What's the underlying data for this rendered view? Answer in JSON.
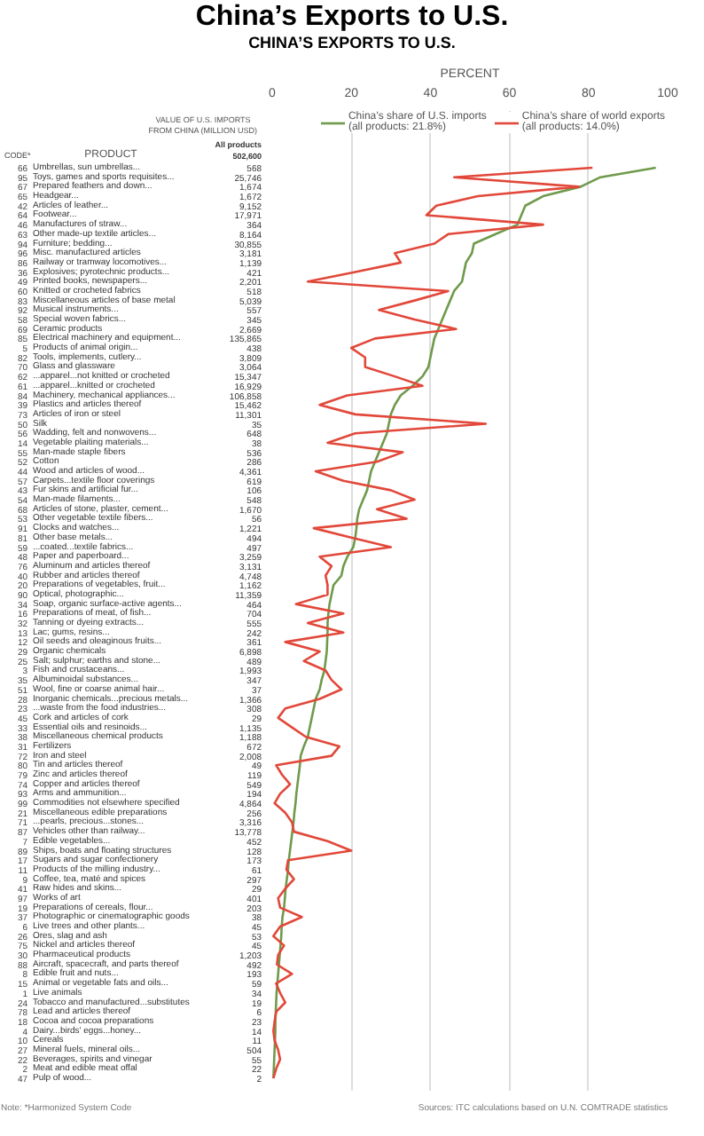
{
  "chart_data": [
    {
      "type": "other",
      "title": "VALUE OF U.S. IMPORTS FROM CHINA (MILLION USD)",
      "value_labels": [
        "568",
        "25,746",
        "1,674",
        "1,672",
        "9,152",
        "17,971",
        "364",
        "8,164",
        "30,855",
        "3,181",
        "1,139",
        "421",
        "2,201",
        "518",
        "5,039",
        "557",
        "345",
        "2,669",
        "135,865",
        "438",
        "3,809",
        "3,064",
        "15,347",
        "16,929",
        "106,858",
        "15,462",
        "11,301",
        "35",
        "648",
        "38",
        "536",
        "286",
        "4,361",
        "619",
        "106",
        "548",
        "1,670",
        "56",
        "1,221",
        "494",
        "497",
        "3,259",
        "3,131",
        "4,748",
        "1,162",
        "11,359",
        "464",
        "704",
        "555",
        "242",
        "361",
        "6,898",
        "489",
        "1,993",
        "347",
        "37",
        "1,366",
        "308",
        "29",
        "1,135",
        "1,188",
        "672",
        "2,008",
        "49",
        "119",
        "549",
        "194",
        "4,864",
        "256",
        "3,316",
        "13,778",
        "452",
        "128",
        "173",
        "61",
        "297",
        "29",
        "401",
        "203",
        "38",
        "45",
        "53",
        "45",
        "1,203",
        "492",
        "193",
        "59",
        "34",
        "19",
        "6",
        "23",
        "14",
        "11",
        "504",
        "55",
        "22",
        "2"
      ],
      "categories": [
        "Umbrellas, sun umbrellas...",
        "Toys, games and sports requisites...",
        "Prepared feathers and down...",
        "Headgear...",
        "Articles of leather...",
        "Footwear...",
        "Manufactures of straw...",
        "Other made-up textile articles...",
        "Furniture; bedding...",
        "Misc. manufactured articles",
        "Railway or tramway locomotives...",
        "Explosives; pyrotechnic products...",
        "Printed books, newspapers...",
        "Knitted or crocheted fabrics",
        "Miscellaneous articles of base metal",
        "Musical instruments...",
        "Special woven fabrics...",
        "Ceramic products",
        "Electrical machinery and equipment...",
        "Products of animal origin...",
        "Tools, implements, cutlery...",
        "Glass and glassware",
        "...apparel...not knitted or crocheted",
        "...apparel...knitted or crocheted",
        "Machinery, mechanical appliances...",
        "Plastics and articles thereof",
        "Articles of iron or steel",
        "Silk",
        "Wadding, felt and nonwovens...",
        "Vegetable plaiting materials...",
        "Man-made staple fibers",
        "Cotton",
        "Wood and articles of wood...",
        "Carpets...textile floor coverings",
        "Fur skins and artificial fur...",
        "Man-made filaments...",
        "Articles of stone, plaster, cement...",
        "Other vegetable textile fibers...",
        "Clocks and watches...",
        "Other base metals...",
        "...coated...textile fabrics...",
        "Paper and paperboard...",
        "Aluminum and articles thereof",
        "Rubber and articles thereof",
        "Preparations of vegetables, fruit...",
        "Optical, photographic...",
        "Soap, organic surface-active agents...",
        "Preparations of meat, of fish...",
        "Tanning or dyeing extracts...",
        "Lac; gums, resins...",
        "Oil seeds and oleaginous fruits...",
        "Organic chemicals",
        "Salt; sulphur; earths and stone...",
        "Fish and crustaceans...",
        "Albuminoidal substances...",
        "Wool, fine or coarse animal hair...",
        "Inorganic chemicals...precious metals...",
        "...waste from the food industries...",
        "Cork and articles of cork",
        "Essential oils and resinoids...",
        "Miscellaneous chemical products",
        "Fertilizers",
        "Iron and steel",
        "Tin and articles thereof",
        "Zinc and articles thereof",
        "Copper and articles thereof",
        "Arms and ammunition...",
        "Commodities not elsewhere specified",
        "Miscellaneous edible preparations",
        "...pearls, precious...stones...",
        "Vehicles other than railway...",
        "Edible vegetables...",
        "Ships, boats and floating structures",
        "Sugars and sugar confectionery",
        "Products of the milling industry...",
        "Coffee, tea, maté and spices",
        "Raw hides and skins...",
        "Works of art",
        "Preparations of cereals, flour...",
        "Photographic or cinematographic goods",
        "Live trees and other plants...",
        "Ores, slag and ash",
        "Nickel and articles thereof",
        "Pharmaceutical products",
        "Aircraft, spacecraft, and parts thereof",
        "Edible fruit and nuts...",
        "Animal or vegetable fats and oils...",
        "Live animals",
        "Tobacco and manufactured...substitutes",
        "Lead and articles thereof",
        "Cocoa and cocoa preparations",
        "Dairy...birds' eggs...honey...",
        "Cereals",
        "Mineral fuels, mineral oils...",
        "Beverages, spirits and vinegar",
        "Meat and edible meat offal",
        "Pulp of wood..."
      ],
      "y2_categories": [
        "66",
        "95",
        "67",
        "65",
        "42",
        "64",
        "46",
        "63",
        "94",
        "96",
        "86",
        "36",
        "49",
        "60",
        "83",
        "92",
        "58",
        "69",
        "85",
        "5",
        "82",
        "70",
        "62",
        "61",
        "84",
        "39",
        "73",
        "50",
        "56",
        "14",
        "55",
        "52",
        "44",
        "57",
        "43",
        "54",
        "68",
        "53",
        "91",
        "81",
        "59",
        "48",
        "76",
        "40",
        "20",
        "90",
        "34",
        "16",
        "32",
        "13",
        "12",
        "29",
        "25",
        "3",
        "35",
        "51",
        "28",
        "23",
        "45",
        "33",
        "38",
        "31",
        "72",
        "80",
        "79",
        "74",
        "93",
        "99",
        "21",
        "71",
        "87",
        "7",
        "89",
        "17",
        "11",
        "9",
        "41",
        "97",
        "19",
        "37",
        "6",
        "26",
        "75",
        "30",
        "88",
        "8",
        "15",
        "1",
        "24",
        "78",
        "18",
        "4",
        "10",
        "27",
        "22",
        "2",
        "47"
      ],
      "annotations": [
        "All products",
        "502,600",
        "CODE*",
        "PRODUCT",
        "Note: *Harmonized System Code"
      ]
    },
    {
      "type": "line",
      "orientation": "horizontal",
      "title": "China’s Exports to U.S.",
      "subtitle": "CHINA’S EXPORTS TO U.S.",
      "xlabel": "PERCENT",
      "xlim": [
        0,
        100
      ],
      "xticks": [
        0,
        20,
        40,
        60,
        80,
        100
      ],
      "grid": "x",
      "legend": "top right",
      "categories": [
        null,
        null,
        null,
        null,
        null,
        null,
        null,
        null,
        null,
        null,
        null,
        null,
        null,
        null,
        null,
        null,
        null,
        null,
        null,
        null,
        null,
        null,
        null,
        null,
        null,
        null,
        null,
        null,
        null,
        null,
        null,
        null,
        null,
        null,
        null,
        null,
        null,
        null,
        null,
        null,
        null,
        null,
        null,
        null,
        null,
        null,
        null,
        null,
        null,
        null,
        null,
        null,
        null,
        null,
        null,
        null,
        null,
        null,
        null,
        null,
        null,
        null,
        null,
        null,
        null,
        null,
        null,
        null,
        null,
        null,
        null,
        null,
        null,
        null,
        null,
        null,
        null,
        null,
        null,
        null,
        null,
        null,
        null,
        null,
        null,
        null,
        null,
        null,
        null,
        null,
        null,
        null,
        null,
        null,
        null,
        null,
        null
      ],
      "series": [
        {
          "name": "China’s share of U.S. imports",
          "color": "#6f9a4c",
          "values": [
            97,
            83,
            78,
            68.5,
            64,
            63,
            62,
            56.5,
            51,
            50.5,
            49,
            48.5,
            48,
            46,
            45,
            44,
            43,
            42,
            41,
            40.5,
            40,
            39.5,
            38,
            35.5,
            32.5,
            31,
            30,
            29.5,
            29,
            28,
            27,
            26,
            25,
            24.5,
            24,
            23,
            22,
            21.5,
            21.3,
            21,
            20.5,
            19,
            18,
            17.5,
            15.5,
            15,
            14.5,
            14.2,
            14,
            14,
            13.9,
            13.8,
            13.5,
            13.2,
            12.5,
            12,
            11,
            10.5,
            10,
            9.5,
            9,
            8,
            7.2,
            7,
            6.7,
            6.4,
            6.1,
            5.9,
            5.6,
            5.4,
            5.1,
            4.8,
            4.5,
            4.2,
            4,
            3.7,
            3.4,
            3.2,
            3,
            2.6,
            2.4,
            2.3,
            2.1,
            1.9,
            1.7,
            1.5,
            1.3,
            1.1,
            1,
            0.9,
            0.8,
            0.8,
            0.7,
            0.6,
            0.5,
            0.4,
            0.3
          ]
        },
        {
          "name": "China’s share of world exports",
          "color": "#e2483a",
          "values": [
            81,
            46,
            77.5,
            52,
            41.5,
            39,
            68.5,
            44.5,
            41,
            31,
            32.5,
            21,
            9,
            44.5,
            36,
            27,
            36,
            46.5,
            26,
            20,
            23.5,
            23.5,
            31,
            38,
            19,
            12,
            21,
            54,
            21,
            14,
            33,
            26.5,
            11,
            18,
            30,
            36,
            26.5,
            34,
            10.5,
            20,
            30,
            12,
            15,
            13.5,
            14,
            14,
            6,
            18,
            9,
            18,
            3.3,
            12,
            8,
            13.5,
            15,
            17.5,
            12,
            3.3,
            1.5,
            5,
            8.5,
            17,
            15,
            1,
            2.5,
            4.5,
            2,
            0.6,
            3.3,
            5,
            5.5,
            14,
            20,
            4,
            3.6,
            5.5,
            3.3,
            1.5,
            2,
            7.5,
            2,
            0.3,
            3,
            1.5,
            1.2,
            5,
            1,
            2,
            3.3,
            1,
            0.6,
            0.3,
            0.6,
            1.5,
            2,
            1,
            0.3
          ]
        }
      ],
      "annotations": [
        "(all products: 21.8%)",
        "(all products: 14.0%)",
        "Sources: ITC calculations based on U.N. COMTRADE statistics"
      ]
    }
  ]
}
